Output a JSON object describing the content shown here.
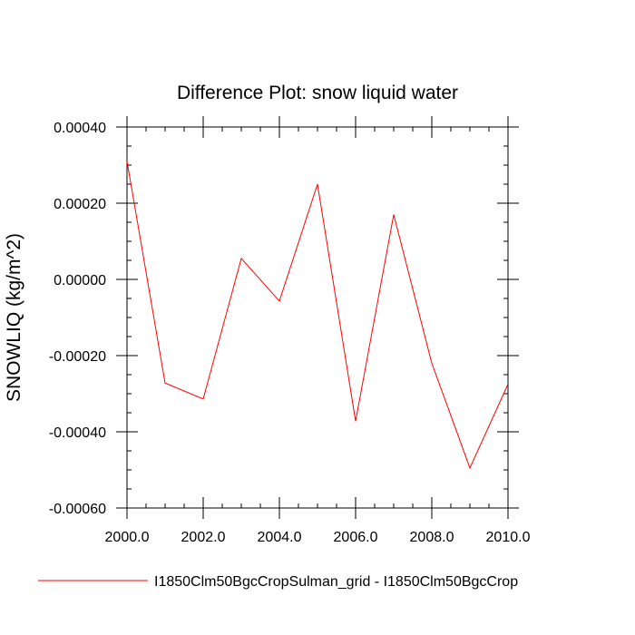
{
  "chart_data": {
    "type": "line",
    "title": "Difference Plot: snow liquid water",
    "xlabel": "",
    "ylabel": "SNOWLIQ  (kg/m^2)",
    "xlim": [
      2000,
      2010
    ],
    "ylim": [
      -0.0006,
      0.0004
    ],
    "x_ticks": [
      2000,
      2002,
      2004,
      2006,
      2008,
      2010
    ],
    "x_tick_labels": [
      "2000.0",
      "2002.0",
      "2004.0",
      "2006.0",
      "2008.0",
      "2010.0"
    ],
    "y_ticks": [
      0.0004,
      0.0002,
      0.0,
      -0.0002,
      -0.0004,
      -0.0006
    ],
    "y_tick_labels": [
      "0.00040",
      "0.00020",
      "0.00000",
      "-0.00020",
      "-0.00040",
      "-0.00060"
    ],
    "grid": false,
    "legend_position": "bottom",
    "series": [
      {
        "name": "I1850Clm50BgcCropSulman_grid - I1850Clm50BgcCrop",
        "color": "#ff0000",
        "x": [
          2000,
          2001,
          2002,
          2003,
          2004,
          2005,
          2006,
          2007,
          2008,
          2009,
          2010
        ],
        "y": [
          0.00031,
          -0.000272,
          -0.000314,
          5.5e-05,
          -5.7e-05,
          0.00025,
          -0.000372,
          0.00017,
          -0.00022,
          -0.000495,
          -0.000275
        ]
      }
    ]
  }
}
